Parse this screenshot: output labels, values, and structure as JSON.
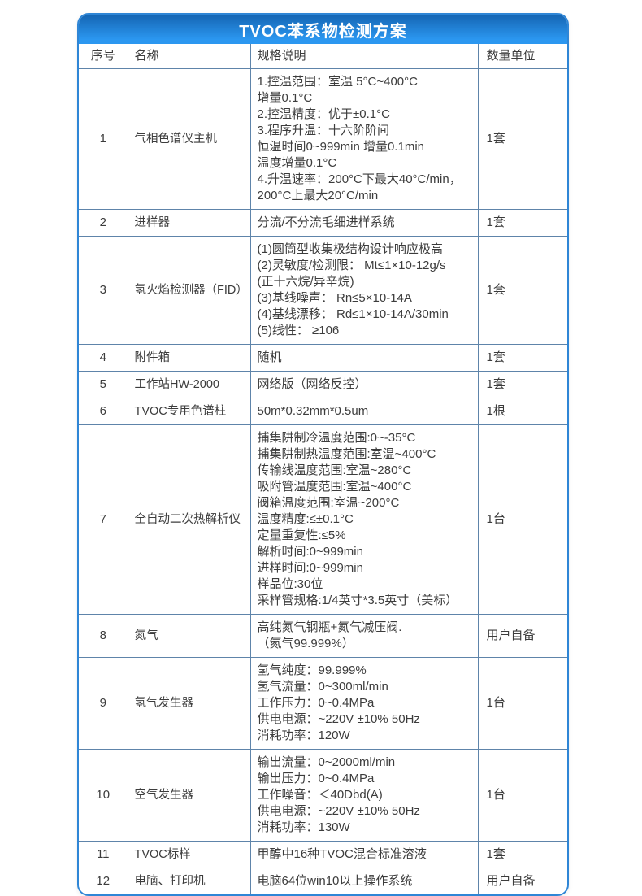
{
  "title": "TVOC苯系物检测方案",
  "columns": [
    "序号",
    "名称",
    "规格说明",
    "数量单位"
  ],
  "colors": {
    "header_gradient_top": "#1565b3",
    "header_gradient_bottom": "#2b97f0",
    "outer_border": "#2f86d6",
    "inner_border": "#5e84aa",
    "title_text": "#ffffff",
    "body_text": "#3c3c3c"
  },
  "rows": [
    {
      "no": "1",
      "name": "气相色谱仪主机",
      "spec": [
        "1.控温范围：室温 5°C~400°C",
        "增量0.1°C",
        "2.控温精度：优于±0.1°C",
        "3.程序升温：十六阶阶间",
        "恒温时间0~999min 增量0.1min",
        "温度增量0.1°C",
        "4.升温速率：200°C下最大40°C/min，",
        "200°C上最大20°C/min"
      ],
      "qty": "1套"
    },
    {
      "no": "2",
      "name": "进样器",
      "spec": [
        "分流/不分流毛细进样系统"
      ],
      "qty": "1套"
    },
    {
      "no": "3",
      "name": "氢火焰检测器（FID）",
      "spec": [
        "(1)圆筒型收集极结构设计响应极高",
        "(2)灵敏度/检测限： Mt≤1×10-12g/s",
        "(正十六烷/异辛烷)",
        "(3)基线噪声： Rn≤5×10-14A",
        "(4)基线漂移： Rd≤1×10-14A/30min",
        "(5)线性： ≥106"
      ],
      "qty": "1套"
    },
    {
      "no": "4",
      "name": "附件箱",
      "spec": [
        "随机"
      ],
      "qty": "1套"
    },
    {
      "no": "5",
      "name": "工作站HW-2000",
      "spec": [
        "网络版（网络反控）"
      ],
      "qty": "1套"
    },
    {
      "no": "6",
      "name": "TVOC专用色谱柱",
      "spec": [
        "50m*0.32mm*0.5um"
      ],
      "qty": "1根"
    },
    {
      "no": "7",
      "name": "全自动二次热解析仪",
      "spec": [
        "捕集阱制冷温度范围:0~-35°C",
        "捕集阱制热温度范围:室温~400°C",
        "传输线温度范围:室温~280°C",
        "吸附管温度范围:室温~400°C",
        "阀箱温度范围:室温~200°C",
        "温度精度:≤±0.1°C",
        "定量重复性:≤5%",
        "解析时间:0~999min",
        "进样时间:0~999min",
        "样品位:30位",
        "采样管规格:1/4英寸*3.5英寸（美标）"
      ],
      "qty": "1台"
    },
    {
      "no": "8",
      "name": "氮气",
      "spec": [
        "高纯氮气钢瓶+氮气减压阀.",
        "（氮气99.999%）"
      ],
      "qty": "用户自备"
    },
    {
      "no": "9",
      "name": "氢气发生器",
      "spec": [
        "氢气纯度：99.999%",
        "氢气流量：0~300ml/min",
        "工作压力：0~0.4MPa",
        "供电电源：~220V ±10% 50Hz",
        "消耗功率：120W"
      ],
      "qty": "1台"
    },
    {
      "no": "10",
      "name": "空气发生器",
      "spec": [
        "输出流量：0~2000ml/min",
        "输出压力：0~0.4MPa",
        "工作噪音：＜40Dbd(A)",
        "供电电源：~220V ±10% 50Hz",
        "消耗功率：130W"
      ],
      "qty": "1台"
    },
    {
      "no": "11",
      "name": "TVOC标样",
      "spec": [
        "甲醇中16种TVOC混合标准溶液"
      ],
      "qty": "1套"
    },
    {
      "no": "12",
      "name": "电脑、打印机",
      "spec": [
        "电脑64位win10以上操作系统"
      ],
      "qty": "用户自备"
    }
  ]
}
